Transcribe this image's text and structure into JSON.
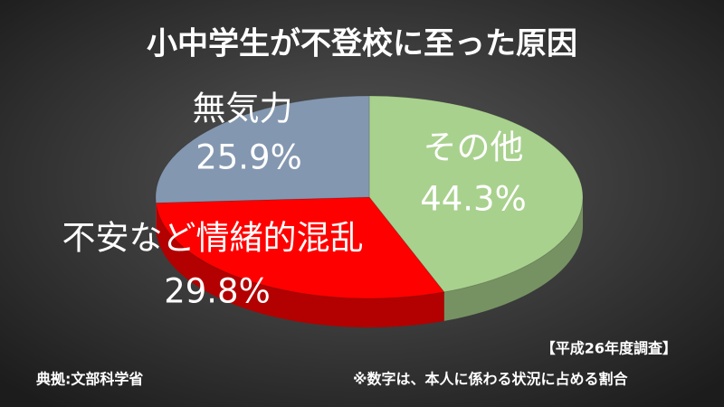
{
  "chart_data": {
    "type": "pie",
    "title": "小中学生が不登校に至った原因",
    "categories": [
      "その他",
      "不安など情緒的混乱",
      "無気力"
    ],
    "values": [
      44.3,
      29.8,
      25.9
    ],
    "value_labels": [
      "44.3%",
      "29.8%",
      "25.9%"
    ],
    "colors": [
      "#a9d18e",
      "#ff0000",
      "#8497b0"
    ],
    "survey_note": "【平成26年度調査】",
    "source": "典拠:文部科学省",
    "footnote": "※数字は、本人に係わる状況に占める割合"
  }
}
